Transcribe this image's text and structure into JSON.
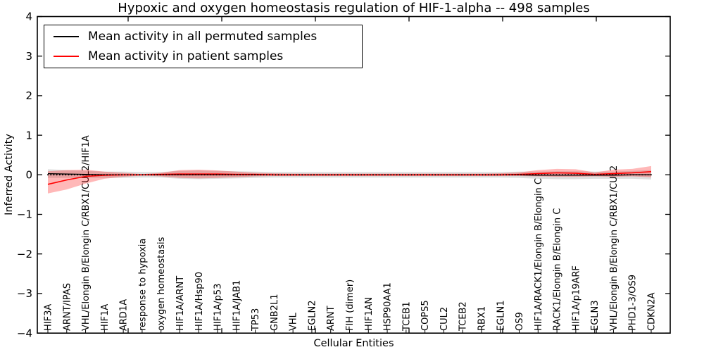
{
  "figure": {
    "title": "Hypoxic and oxygen homeostasis regulation of HIF-1-alpha -- 498 samples",
    "xlabel": "Cellular Entities",
    "ylabel": "Inferred Activity",
    "legend": {
      "items": [
        {
          "label": "Mean activity in all permuted samples",
          "color": "#000000"
        },
        {
          "label": "Mean activity in patient samples",
          "color": "#ff0000"
        }
      ]
    }
  },
  "chart_data": {
    "type": "line",
    "title": "Hypoxic and oxygen homeostasis regulation of HIF-1-alpha -- 498 samples",
    "xlabel": "Cellular Entities",
    "ylabel": "Inferred Activity",
    "ylim": [
      -4,
      4
    ],
    "yticks": [
      4,
      3,
      2,
      1,
      0,
      -1,
      -2,
      -3,
      -4
    ],
    "grid": false,
    "legend_position": "upper left",
    "zero_reference_line": {
      "y": 0,
      "style": "dotted",
      "color": "#000000"
    },
    "categories": [
      "HIF3A",
      "ARNT/IPAS",
      "VHL/Elongin B/Elongin C/RBX1/CUL2/HIF1A",
      "HIF1A",
      "ARD1A",
      "response to hypoxia",
      "oxygen homeostasis",
      "HIF1A/ARNT",
      "HIF1A/Hsp90",
      "HIF1A/p53",
      "HIF1A/JAB1",
      "TP53",
      "GNB2L1",
      "VHL",
      "EGLN2",
      "ARNT",
      "FIH (dimer)",
      "HIF1AN",
      "HSP90AA1",
      "TCEB1",
      "COPS5",
      "CUL2",
      "TCEB2",
      "RBX1",
      "EGLN1",
      "OS9",
      "HIF1A/RACK1/Elongin B/Elongin C",
      "RACK1/Elongin B/Elongin C",
      "HIF1A/p19ARF",
      "EGLN3",
      "VHL/Elongin B/Elongin C/RBX1/CUL2",
      "PHD1-3/OS9",
      "CDKN2A"
    ],
    "series": [
      {
        "name": "Mean activity in all permuted samples",
        "color": "#000000",
        "band_color": "rgba(0,0,0,0.13)",
        "values": [
          0.03,
          0.02,
          0.01,
          0,
          0,
          0,
          0,
          0,
          0,
          0,
          0,
          0,
          0,
          0,
          0,
          0,
          0,
          0,
          0,
          0,
          0,
          0,
          0,
          0,
          0,
          0,
          -0.01,
          -0.01,
          -0.01,
          -0.01,
          -0.01,
          0,
          0
        ],
        "band_halfwidth": [
          0.11,
          0.1,
          0.09,
          0.08,
          0.08,
          0.07,
          0.07,
          0.1,
          0.11,
          0.1,
          0.09,
          0.08,
          0.07,
          0.07,
          0.07,
          0.07,
          0.07,
          0.07,
          0.07,
          0.07,
          0.07,
          0.07,
          0.07,
          0.07,
          0.07,
          0.08,
          0.09,
          0.1,
          0.1,
          0.09,
          0.09,
          0.1,
          0.12
        ]
      },
      {
        "name": "Mean activity in patient samples",
        "color": "#ff0000",
        "band_color": "rgba(255,0,0,0.28)",
        "values": [
          -0.24,
          -0.13,
          -0.04,
          -0.01,
          0,
          0,
          0.01,
          0.02,
          0.02,
          0.02,
          0.01,
          0.01,
          0,
          0,
          0,
          0,
          0,
          0,
          0,
          0,
          0,
          0,
          0,
          0,
          0,
          0.01,
          0.03,
          0.05,
          0.04,
          0.01,
          0.03,
          0.05,
          0.08
        ],
        "band_hi": [
          0.09,
          0.12,
          0.13,
          0.08,
          0.05,
          0.02,
          0.05,
          0.12,
          0.13,
          0.11,
          0.08,
          0.05,
          0.04,
          0.03,
          0.03,
          0.03,
          0.03,
          0.03,
          0.03,
          0.03,
          0.03,
          0.03,
          0.03,
          0.03,
          0.04,
          0.06,
          0.12,
          0.15,
          0.14,
          0.06,
          0.13,
          0.15,
          0.22
        ],
        "band_lo": [
          -0.47,
          -0.37,
          -0.22,
          -0.1,
          -0.05,
          -0.02,
          -0.04,
          -0.08,
          -0.09,
          -0.08,
          -0.06,
          -0.04,
          -0.03,
          -0.03,
          -0.03,
          -0.03,
          -0.03,
          -0.03,
          -0.03,
          -0.03,
          -0.03,
          -0.03,
          -0.03,
          -0.03,
          -0.03,
          -0.03,
          -0.04,
          -0.05,
          -0.05,
          -0.04,
          -0.05,
          -0.04,
          -0.06
        ]
      }
    ]
  }
}
